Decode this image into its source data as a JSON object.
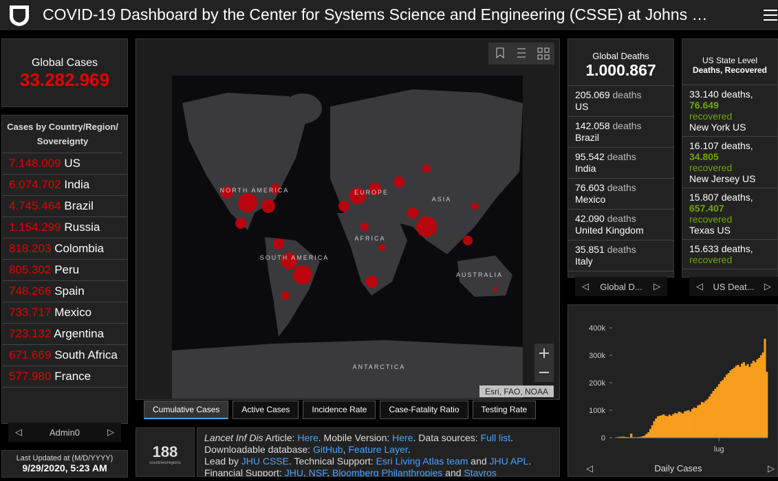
{
  "header": {
    "title": "COVID-19 Dashboard by the Center for Systems Science and Engineering (CSSE) at Johns …"
  },
  "global_cases": {
    "label": "Global Cases",
    "value": "33.282.969"
  },
  "country_list": {
    "title": "Cases by Country/Region/Sovereignty",
    "rows": [
      {
        "value": "7.148.009",
        "name": "US"
      },
      {
        "value": "6.074.702",
        "name": "India"
      },
      {
        "value": "4.745.464",
        "name": "Brazil"
      },
      {
        "value": "1.154.299",
        "name": "Russia"
      },
      {
        "value": "818.203",
        "name": "Colombia"
      },
      {
        "value": "805.302",
        "name": "Peru"
      },
      {
        "value": "748.266",
        "name": "Spain"
      },
      {
        "value": "733.717",
        "name": "Mexico"
      },
      {
        "value": "723.132",
        "name": "Argentina"
      },
      {
        "value": "671.669",
        "name": "South Africa"
      },
      {
        "value": "577.980",
        "name": "France"
      }
    ],
    "nav_label": "Admin0"
  },
  "last_updated": {
    "label": "Last Updated at (M/D/YYYY)",
    "value": "9/29/2020, 5:23 AM"
  },
  "map": {
    "labels": [
      {
        "text": "NORTH AMERICA",
        "x": 370,
        "y": 280
      },
      {
        "text": "SOUTH AMERICA",
        "x": 428,
        "y": 378
      },
      {
        "text": "EUROPE",
        "x": 540,
        "y": 283
      },
      {
        "text": "ASIA",
        "x": 642,
        "y": 293
      },
      {
        "text": "AFRICA",
        "x": 538,
        "y": 350
      },
      {
        "text": "AUSTRALIA",
        "x": 697,
        "y": 403
      },
      {
        "text": "ANTARCTICA",
        "x": 551,
        "y": 537
      }
    ],
    "attribution": "Esri, FAO, NOAA",
    "tabs": [
      "Cumulative Cases",
      "Active Cases",
      "Incidence Rate",
      "Case-Fatality Ratio",
      "Testing Rate"
    ]
  },
  "counter": {
    "value": "188",
    "label": "countries/regions"
  },
  "info": {
    "lines": [
      [
        {
          "text": "Lancet Inf Dis",
          "style": "italic"
        },
        {
          "text": " Article: ",
          "style": "plain"
        },
        {
          "text": "Here",
          "style": "link"
        },
        {
          "text": ". Mobile Version: ",
          "style": "plain"
        },
        {
          "text": "Here",
          "style": "link"
        },
        {
          "text": ". Data sources: ",
          "style": "plain"
        },
        {
          "text": "Full list",
          "style": "link"
        },
        {
          "text": ". Downloadable database: ",
          "style": "plain"
        },
        {
          "text": "GitHub",
          "style": "link"
        },
        {
          "text": ", ",
          "style": "plain"
        },
        {
          "text": "Feature Layer",
          "style": "link"
        },
        {
          "text": ".",
          "style": "plain"
        }
      ],
      [
        {
          "text": "Lead by ",
          "style": "plain"
        },
        {
          "text": "JHU CSSE",
          "style": "link"
        },
        {
          "text": ". Technical Support: ",
          "style": "plain"
        },
        {
          "text": "Esri Living Atlas team",
          "style": "link"
        },
        {
          "text": " and ",
          "style": "plain"
        },
        {
          "text": "JHU APL",
          "style": "link"
        },
        {
          "text": ". Financial Support: ",
          "style": "plain"
        },
        {
          "text": "JHU",
          "style": "link"
        },
        {
          "text": ", ",
          "style": "plain"
        },
        {
          "text": "NSF",
          "style": "link"
        },
        {
          "text": ", ",
          "style": "plain"
        },
        {
          "text": "Bloomberg Philanthropies",
          "style": "link"
        },
        {
          "text": " and ",
          "style": "plain"
        },
        {
          "text": "Stavros",
          "style": "link"
        }
      ]
    ]
  },
  "global_deaths": {
    "label": "Global Deaths",
    "value": "1.000.867",
    "rows": [
      {
        "value": "205.069",
        "unit": "deaths",
        "name": "US"
      },
      {
        "value": "142.058",
        "unit": "deaths",
        "name": "Brazil"
      },
      {
        "value": "95.542",
        "unit": "deaths",
        "name": "India"
      },
      {
        "value": "76.603",
        "unit": "deaths",
        "name": "Mexico"
      },
      {
        "value": "42.090",
        "unit": "deaths",
        "name": "United Kingdom"
      },
      {
        "value": "35.851",
        "unit": "deaths",
        "name": "Italy"
      }
    ],
    "nav_label": "Global D..."
  },
  "us_state": {
    "label1": "US State Level",
    "label2": "Deaths, Recovered",
    "rows": [
      {
        "deaths": "33.140",
        "deaths_unit": "deaths,",
        "recovered": "76.649",
        "recovered_unit": "recovered",
        "name": "New York US"
      },
      {
        "deaths": "16.107",
        "deaths_unit": "deaths,",
        "recovered": "34.805",
        "recovered_unit": "recovered",
        "name": "New Jersey US"
      },
      {
        "deaths": "15.807",
        "deaths_unit": "deaths,",
        "recovered": "657.407",
        "recovered_unit": "recovered",
        "name": "Texas US"
      },
      {
        "deaths": "15.633",
        "deaths_unit": "deaths,",
        "recovered_unit": "recovered"
      }
    ],
    "nav_label": "US Deat..."
  },
  "chart_data": {
    "type": "bar",
    "title": "Daily Cases",
    "color": "#f79e1d",
    "categories": [
      null,
      null,
      null,
      null,
      null,
      null,
      null,
      null,
      null,
      null,
      null,
      null,
      null,
      null,
      null,
      null,
      null,
      null,
      null,
      null,
      null,
      null,
      null,
      null,
      null,
      null,
      null,
      null,
      null,
      null,
      null,
      null,
      null,
      null,
      null,
      null,
      null,
      null,
      null,
      null,
      null,
      null,
      null,
      null,
      null,
      null,
      null,
      null,
      null,
      null,
      null,
      null,
      null,
      null,
      "lug",
      null,
      null,
      null,
      null,
      null,
      null,
      null,
      null,
      null,
      null,
      null,
      null,
      null,
      null,
      null,
      null,
      null,
      null,
      null,
      null,
      null,
      null,
      null,
      null,
      null
    ],
    "values": [
      600,
      2000,
      3000,
      3500,
      4000,
      2500,
      2000,
      2000,
      15000,
      2000,
      1500,
      2000,
      2500,
      3000,
      5000,
      8000,
      14000,
      20000,
      32000,
      45000,
      60000,
      70000,
      78000,
      80000,
      82000,
      85000,
      80000,
      78000,
      84000,
      80000,
      86000,
      90000,
      88000,
      95000,
      92000,
      88000,
      96000,
      98000,
      100000,
      95000,
      105000,
      110000,
      108000,
      118000,
      120000,
      130000,
      128000,
      135000,
      140000,
      150000,
      160000,
      170000,
      178000,
      185000,
      195000,
      205000,
      210000,
      220000,
      230000,
      235000,
      245000,
      250000,
      255000,
      262000,
      265000,
      258000,
      270000,
      275000,
      262000,
      268000,
      258000,
      270000,
      280000,
      275000,
      285000,
      290000,
      300000,
      310000,
      360000,
      240000
    ],
    "ylim": [
      0,
      400000
    ],
    "yticks": [
      {
        "value": 0,
        "label": "0"
      },
      {
        "value": 100000,
        "label": "100k"
      },
      {
        "value": 200000,
        "label": "200k"
      },
      {
        "value": 300000,
        "label": "300k"
      },
      {
        "value": 400000,
        "label": "400k"
      }
    ]
  }
}
